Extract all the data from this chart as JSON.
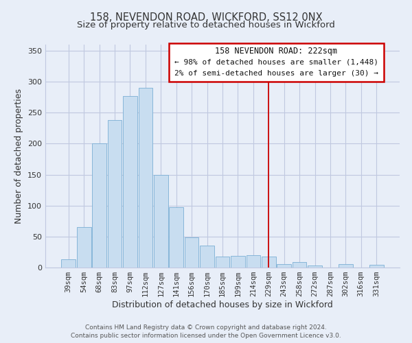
{
  "title": "158, NEVENDON ROAD, WICKFORD, SS12 0NX",
  "subtitle": "Size of property relative to detached houses in Wickford",
  "xlabel": "Distribution of detached houses by size in Wickford",
  "ylabel": "Number of detached properties",
  "bar_labels": [
    "39sqm",
    "54sqm",
    "68sqm",
    "83sqm",
    "97sqm",
    "112sqm",
    "127sqm",
    "141sqm",
    "156sqm",
    "170sqm",
    "185sqm",
    "199sqm",
    "214sqm",
    "229sqm",
    "243sqm",
    "258sqm",
    "272sqm",
    "287sqm",
    "302sqm",
    "316sqm",
    "331sqm"
  ],
  "bar_values": [
    13,
    65,
    200,
    238,
    277,
    290,
    150,
    97,
    49,
    35,
    18,
    19,
    20,
    18,
    5,
    9,
    3,
    0,
    5,
    0,
    4
  ],
  "bar_color": "#c8ddf0",
  "bar_edge_color": "#7aafd4",
  "ylim": [
    0,
    360
  ],
  "yticks": [
    0,
    50,
    100,
    150,
    200,
    250,
    300,
    350
  ],
  "vline_x_index": 13,
  "vline_color": "#cc0000",
  "annotation_title": "158 NEVENDON ROAD: 222sqm",
  "annotation_line1": "← 98% of detached houses are smaller (1,448)",
  "annotation_line2": "2% of semi-detached houses are larger (30) →",
  "footer_line1": "Contains HM Land Registry data © Crown copyright and database right 2024.",
  "footer_line2": "Contains public sector information licensed under the Open Government Licence v3.0.",
  "bg_color": "#e8eef8",
  "grid_color": "#c0c8e0",
  "title_fontsize": 10.5,
  "subtitle_fontsize": 9.5,
  "axis_label_fontsize": 9,
  "tick_fontsize": 7.5,
  "footer_fontsize": 6.5,
  "annot_title_fontsize": 8.5,
  "annot_text_fontsize": 8.0
}
